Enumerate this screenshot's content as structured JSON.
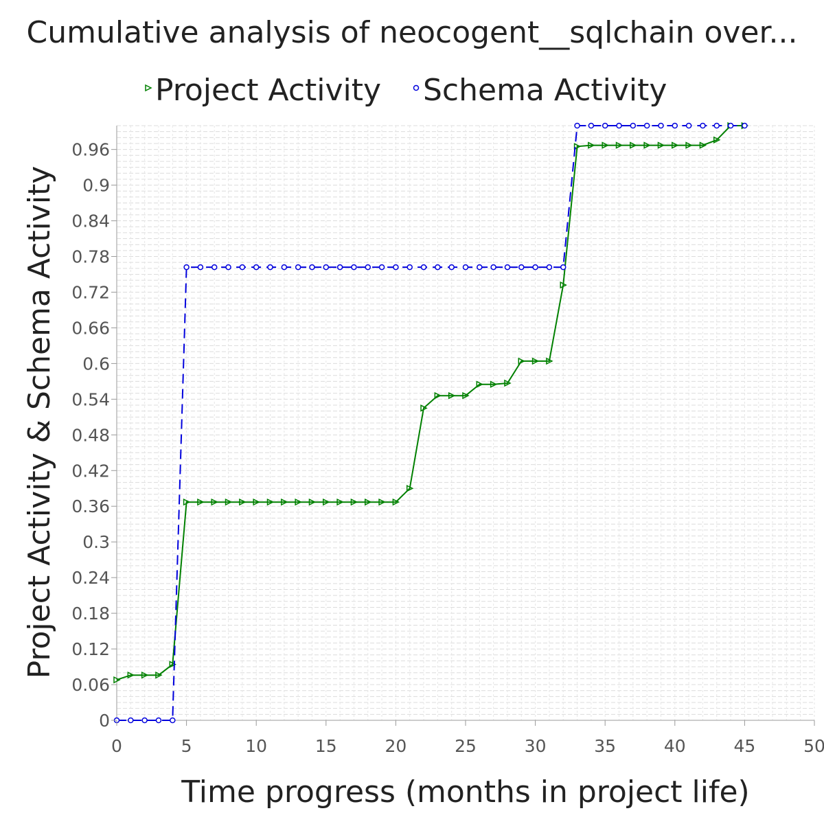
{
  "chart_data": {
    "type": "line",
    "title": "Cumulative analysis of neocogent__sqlchain over...",
    "xlabel": "Time progress (months in project life)",
    "ylabel": "Project Activity & Schema Activity",
    "xlim": [
      0,
      50
    ],
    "ylim": [
      0,
      1.0
    ],
    "x_ticks": [
      "0",
      "5",
      "10",
      "15",
      "20",
      "25",
      "30",
      "35",
      "40",
      "45",
      "50"
    ],
    "y_ticks": [
      "0",
      "0.06",
      "0.12",
      "0.18",
      "0.24",
      "0.3",
      "0.36",
      "0.42",
      "0.48",
      "0.54",
      "0.6",
      "0.66",
      "0.72",
      "0.78",
      "0.84",
      "0.9",
      "0.96"
    ],
    "grid": true,
    "legend_position": "top",
    "series": [
      {
        "name": "Project Activity",
        "color": "#008000",
        "line_style": "solid",
        "marker": "triangle-right",
        "x": [
          0,
          1,
          2,
          3,
          4,
          5,
          6,
          7,
          8,
          9,
          10,
          11,
          12,
          13,
          14,
          15,
          16,
          17,
          18,
          19,
          20,
          21,
          22,
          23,
          24,
          25,
          26,
          27,
          28,
          29,
          30,
          31,
          32,
          33,
          34,
          35,
          36,
          37,
          38,
          39,
          40,
          41,
          42,
          43,
          44,
          45
        ],
        "values": [
          0.068,
          0.076,
          0.076,
          0.076,
          0.094,
          0.367,
          0.367,
          0.367,
          0.367,
          0.367,
          0.367,
          0.367,
          0.367,
          0.367,
          0.367,
          0.367,
          0.367,
          0.367,
          0.367,
          0.367,
          0.367,
          0.39,
          0.525,
          0.546,
          0.546,
          0.546,
          0.565,
          0.565,
          0.567,
          0.604,
          0.604,
          0.604,
          0.732,
          0.965,
          0.967,
          0.967,
          0.967,
          0.967,
          0.967,
          0.967,
          0.967,
          0.967,
          0.967,
          0.976,
          1.0,
          1.0
        ]
      },
      {
        "name": "Schema Activity",
        "color": "#0000dd",
        "line_style": "dashed",
        "marker": "circle",
        "x": [
          0,
          1,
          2,
          3,
          4,
          5,
          6,
          7,
          8,
          9,
          10,
          11,
          12,
          13,
          14,
          15,
          16,
          17,
          18,
          19,
          20,
          21,
          22,
          23,
          24,
          25,
          26,
          27,
          28,
          29,
          30,
          31,
          32,
          33,
          34,
          35,
          36,
          37,
          38,
          39,
          40,
          41,
          42,
          43,
          44,
          45
        ],
        "values": [
          0,
          0,
          0,
          0,
          0,
          0.762,
          0.762,
          0.762,
          0.762,
          0.762,
          0.762,
          0.762,
          0.762,
          0.762,
          0.762,
          0.762,
          0.762,
          0.762,
          0.762,
          0.762,
          0.762,
          0.762,
          0.762,
          0.762,
          0.762,
          0.762,
          0.762,
          0.762,
          0.762,
          0.762,
          0.762,
          0.762,
          0.762,
          1.0,
          1.0,
          1.0,
          1.0,
          1.0,
          1.0,
          1.0,
          1.0,
          1.0,
          1.0,
          1.0,
          1.0,
          1.0
        ]
      }
    ]
  }
}
